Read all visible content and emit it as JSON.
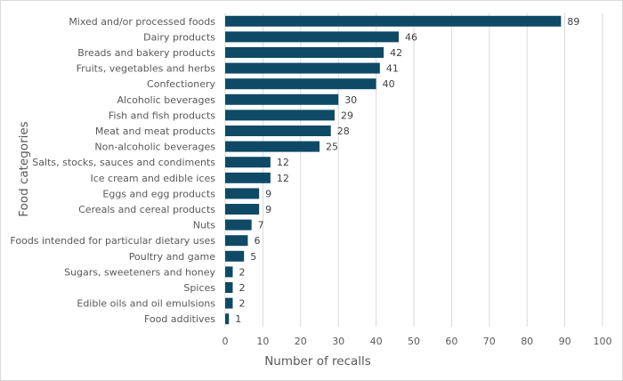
{
  "chart_data": {
    "type": "bar",
    "orientation": "horizontal",
    "categories": [
      "Mixed and/or processed foods",
      "Dairy products",
      "Breads and bakery products",
      "Fruits, vegetables and herbs",
      "Confectionery",
      "Alcoholic beverages",
      "Fish and fish products",
      "Meat and meat products",
      "Non-alcoholic beverages",
      "Salts, stocks, sauces and condiments",
      "Ice cream and edible ices",
      "Eggs and egg products",
      "Cereals and cereal products",
      "Nuts",
      "Foods intended for particular dietary uses",
      "Poultry and game",
      "Sugars, sweeteners and honey",
      "Spices",
      "Edible oils and oil emulsions",
      "Food additives"
    ],
    "values": [
      89,
      46,
      42,
      41,
      40,
      30,
      29,
      28,
      25,
      12,
      12,
      9,
      9,
      7,
      6,
      5,
      2,
      2,
      2,
      1
    ],
    "xlabel": "Number of recalls",
    "ylabel": "Food categories",
    "xlim": [
      0,
      100
    ],
    "xticks": [
      "0",
      "10",
      "20",
      "30",
      "40",
      "50",
      "60",
      "70",
      "80",
      "90",
      "100"
    ],
    "grid": "vertical",
    "data_labels": true,
    "bar_color": "#0e4a66"
  }
}
